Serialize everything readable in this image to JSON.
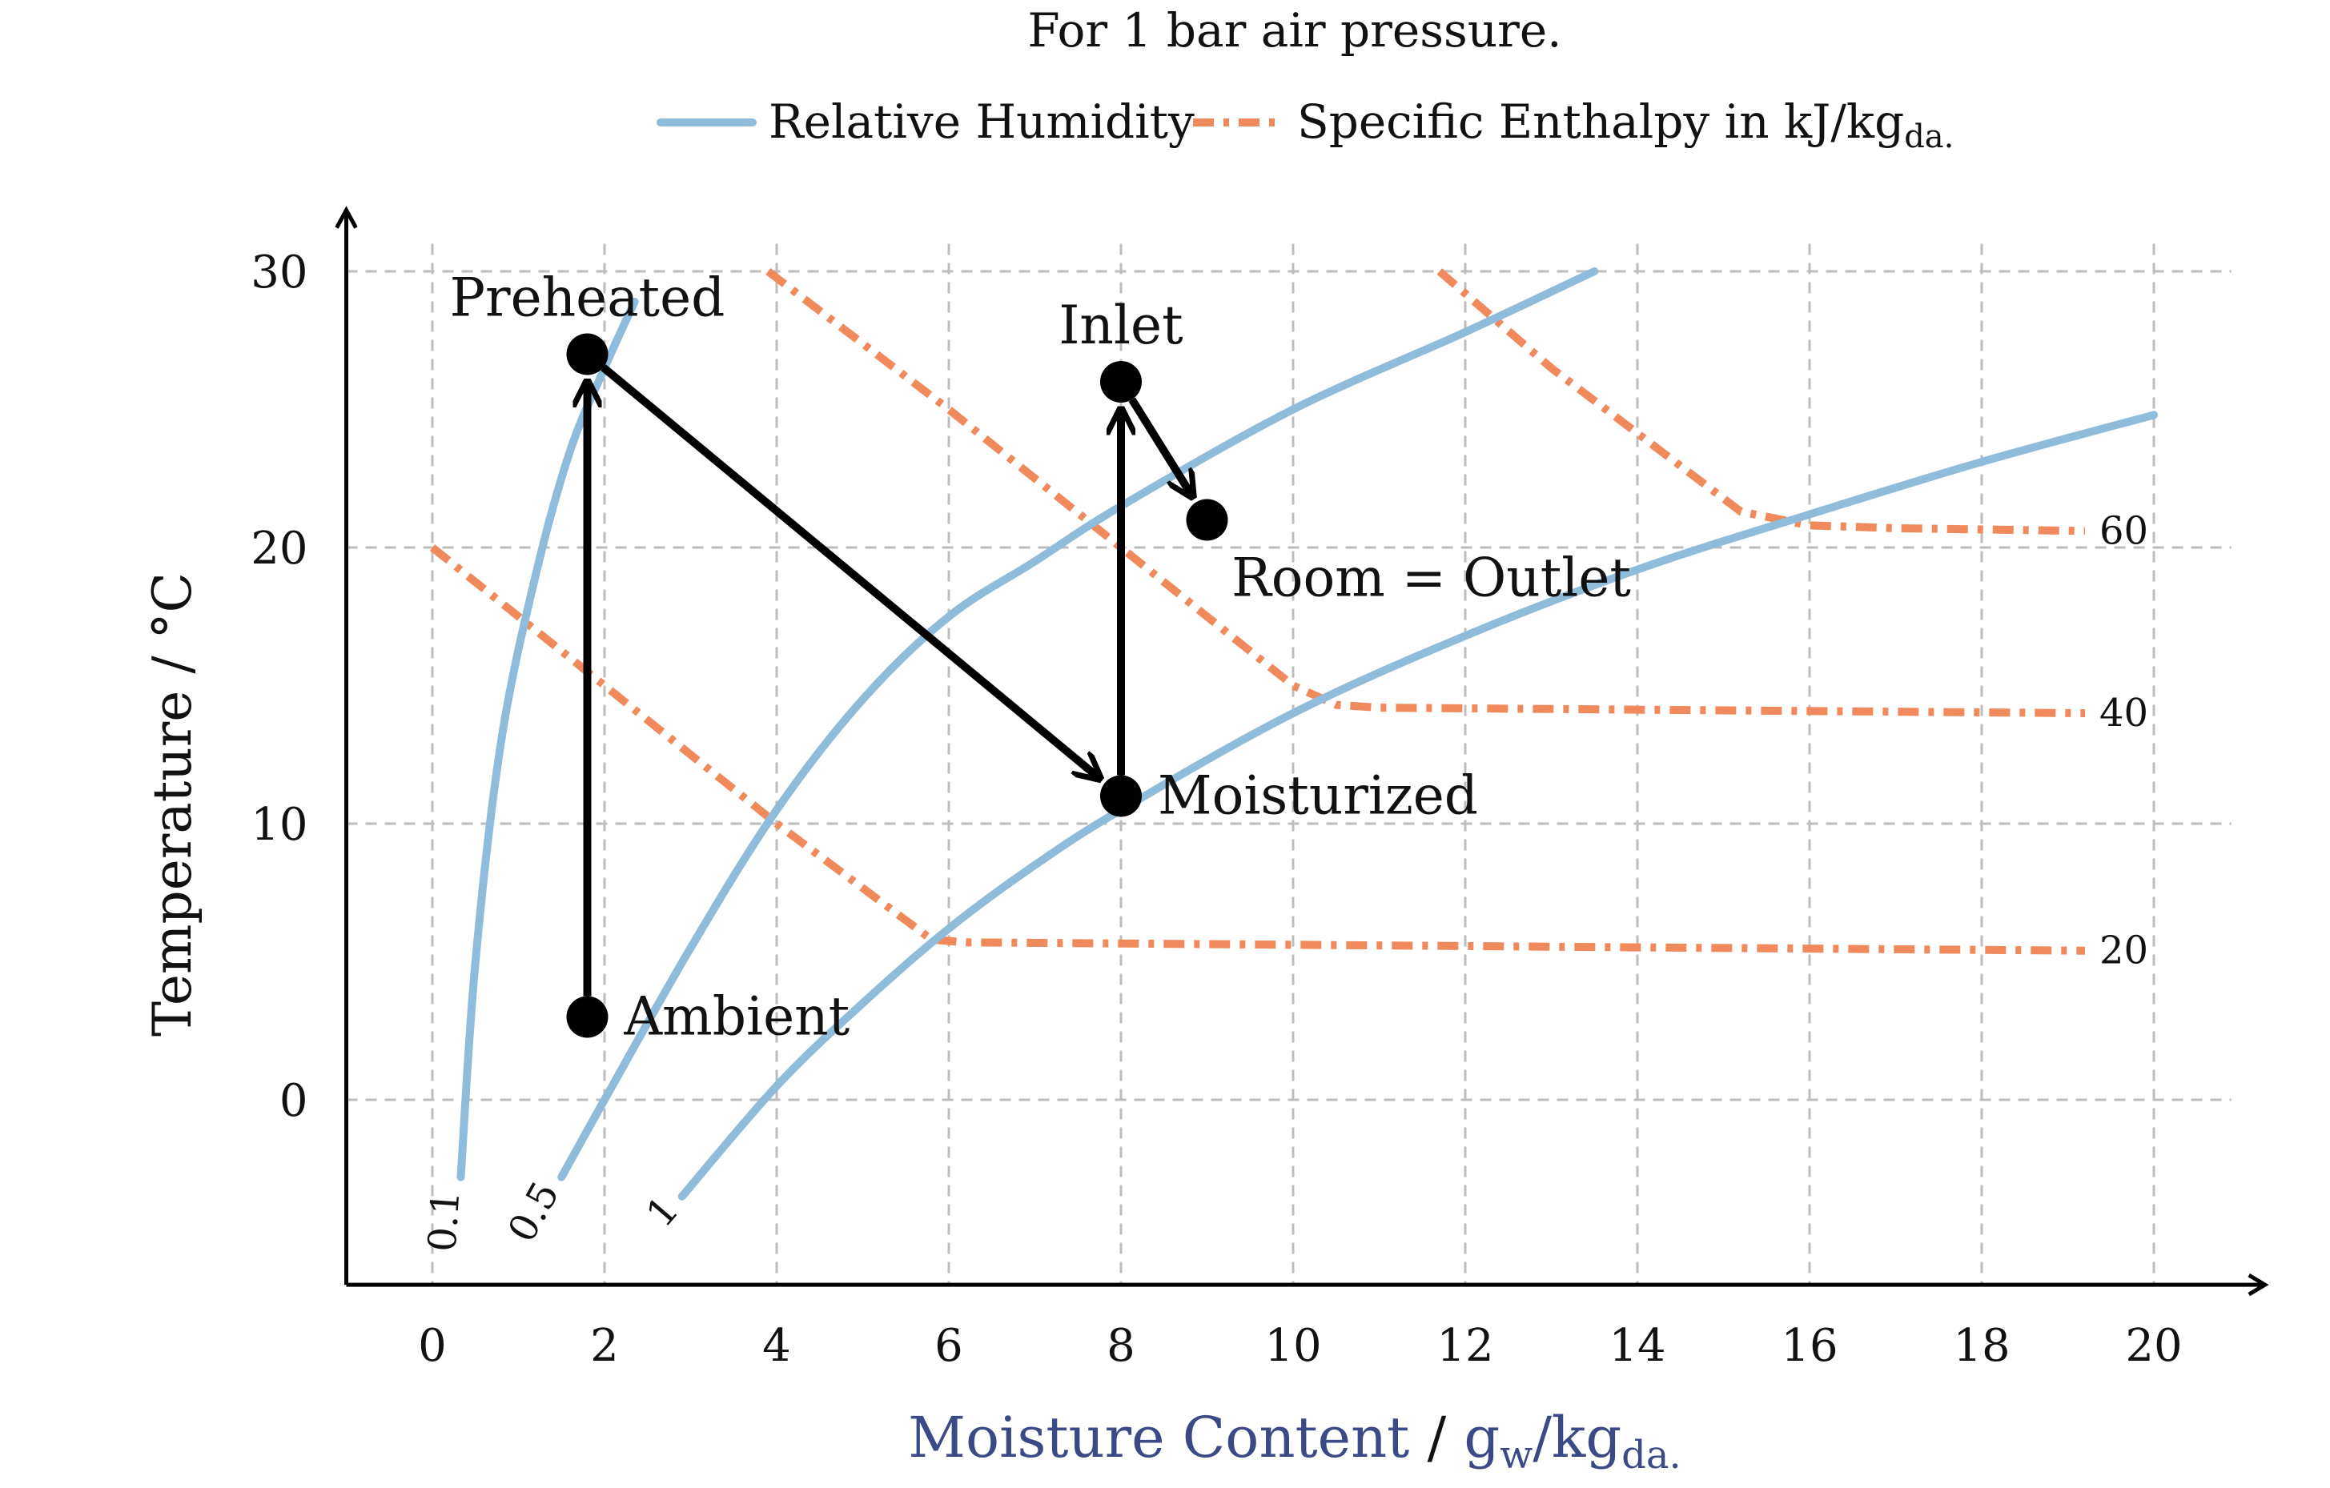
{
  "chart_data": {
    "type": "line",
    "title": "For 1 bar air pressure.",
    "xlabel": {
      "main": "Moisture Content",
      "sep": " / ",
      "unit": "g",
      "unit_sub": "w",
      "unit_rest": "/kg",
      "unit_rest_sub": "da."
    },
    "ylabel": "Temperature / °C",
    "xlim": [
      -1,
      20.9
    ],
    "ylim": [
      -6.7,
      31
    ],
    "x_ticks": [
      0,
      2,
      4,
      6,
      8,
      10,
      12,
      14,
      16,
      18,
      20
    ],
    "y_ticks": [
      0,
      10,
      20,
      30
    ],
    "grid": true,
    "legend": {
      "position": "top",
      "entries": [
        {
          "label": "Relative Humidity",
          "color": "#8fbcdb",
          "style": "solid"
        },
        {
          "label": "Specific Enthalpy in kJ/kg",
          "label_sub": "da.",
          "color": "#f08a5d",
          "style": "dash-dot"
        }
      ]
    },
    "colors": {
      "relative_humidity": "#8fbcdb",
      "specific_enthalpy": "#f08a5d",
      "process": "#000000"
    },
    "relative_humidity_series": [
      {
        "label": "0.1",
        "points": [
          [
            0.33,
            -2.8
          ],
          [
            0.5,
            5
          ],
          [
            0.8,
            13
          ],
          [
            1.2,
            19
          ],
          [
            1.6,
            23.5
          ],
          [
            2.0,
            26.5
          ],
          [
            2.35,
            28.9
          ]
        ]
      },
      {
        "label": "0.5",
        "points": [
          [
            1.5,
            -2.8
          ],
          [
            2,
            0
          ],
          [
            3,
            5.5
          ],
          [
            4,
            10.5
          ],
          [
            5,
            14.5
          ],
          [
            6,
            17.5
          ],
          [
            7,
            19.5
          ],
          [
            8,
            21.5
          ],
          [
            10,
            25
          ],
          [
            12,
            27.8
          ],
          [
            13.5,
            30
          ]
        ]
      },
      {
        "label": "1",
        "points": [
          [
            2.9,
            -3.5
          ],
          [
            4,
            0.5
          ],
          [
            5,
            3.5
          ],
          [
            6,
            6.2
          ],
          [
            7,
            8.5
          ],
          [
            8,
            10.5
          ],
          [
            10,
            14
          ],
          [
            12,
            16.8
          ],
          [
            14,
            19.2
          ],
          [
            16,
            21.2
          ],
          [
            18,
            23.1
          ],
          [
            20,
            24.8
          ]
        ]
      }
    ],
    "enthalpy_series": [
      {
        "label": "20",
        "points": [
          [
            0,
            20
          ],
          [
            2,
            15
          ],
          [
            4,
            10
          ],
          [
            5.8,
            5.8
          ],
          [
            6.2,
            5.7
          ],
          [
            19.2,
            5.4
          ]
        ]
      },
      {
        "label": "40",
        "points": [
          [
            3.9,
            30
          ],
          [
            6,
            25
          ],
          [
            8,
            20
          ],
          [
            10,
            15
          ],
          [
            10.5,
            14.3
          ],
          [
            11,
            14.2
          ],
          [
            19.2,
            14
          ]
        ]
      },
      {
        "label": "60",
        "points": [
          [
            11.7,
            30
          ],
          [
            13,
            26.5
          ],
          [
            15.2,
            21.3
          ],
          [
            16,
            20.8
          ],
          [
            17,
            20.7
          ],
          [
            19.2,
            20.6
          ]
        ]
      }
    ],
    "states": [
      {
        "name": "Ambient",
        "x": 1.8,
        "y": 3,
        "label_side": "right"
      },
      {
        "name": "Preheated",
        "x": 1.8,
        "y": 27,
        "label_side": "above"
      },
      {
        "name": "Moisturized",
        "x": 8,
        "y": 11,
        "label_side": "right"
      },
      {
        "name": "Inlet",
        "x": 8,
        "y": 26,
        "label_side": "above"
      },
      {
        "name": "Room = Outlet",
        "x": 9,
        "y": 21,
        "label_side": "below"
      }
    ],
    "process_arrows": [
      {
        "from": [
          1.8,
          3
        ],
        "to": [
          1.8,
          27
        ]
      },
      {
        "from": [
          1.8,
          27
        ],
        "to": [
          8,
          11
        ]
      },
      {
        "from": [
          8,
          11
        ],
        "to": [
          8,
          26
        ]
      },
      {
        "from": [
          8,
          26
        ],
        "to": [
          9,
          21
        ]
      }
    ]
  }
}
